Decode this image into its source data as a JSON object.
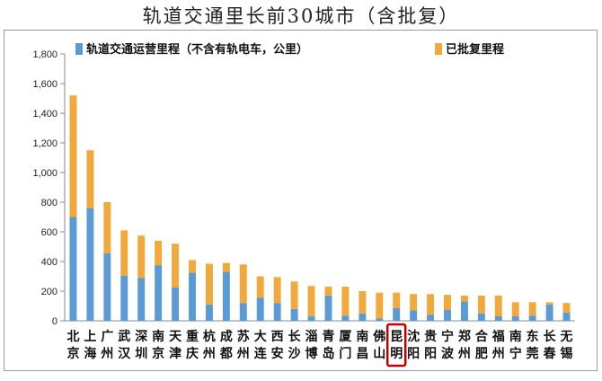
{
  "title": "轨道交通里长前30城市（含批复）",
  "chart_data": {
    "type": "bar",
    "stacked": true,
    "categories": [
      "北京",
      "上海",
      "广州",
      "武汉",
      "深圳",
      "南京",
      "天津",
      "重庆",
      "杭州",
      "成都",
      "苏州",
      "大连",
      "西安",
      "长沙",
      "淄博",
      "青岛",
      "厦门",
      "南昌",
      "佛山",
      "昆明",
      "沈阳",
      "贵阳",
      "宁波",
      "郑州",
      "合肥",
      "福州",
      "南宁",
      "东莞",
      "长春",
      "无锡"
    ],
    "series": [
      {
        "name": "轨道交通运营里程（不含有轨电车，公里）",
        "color": "#5b9bd5",
        "values": [
          700,
          760,
          455,
          305,
          290,
          375,
          225,
          325,
          110,
          330,
          120,
          155,
          120,
          80,
          30,
          170,
          35,
          50,
          15,
          85,
          70,
          40,
          75,
          130,
          50,
          30,
          30,
          35,
          110,
          55
        ]
      },
      {
        "name": "已批复里程",
        "color": "#f2a93b",
        "values": [
          820,
          390,
          345,
          305,
          285,
          165,
          295,
          85,
          275,
          60,
          260,
          145,
          175,
          185,
          205,
          60,
          195,
          150,
          175,
          105,
          110,
          140,
          100,
          40,
          120,
          140,
          95,
          90,
          15,
          65
        ]
      }
    ],
    "ylim": [
      0,
      1800
    ],
    "yticks": [
      0,
      200,
      400,
      600,
      800,
      1000,
      1200,
      1400,
      1600,
      1800
    ],
    "ytick_labels": [
      "0",
      "200",
      "400",
      "600",
      "800",
      "1,000",
      "1,200",
      "1,400",
      "1,600",
      "1,800"
    ],
    "highlight_category": "昆明",
    "highlight_color": "#c00000",
    "legend_position": "top",
    "grid": false
  }
}
